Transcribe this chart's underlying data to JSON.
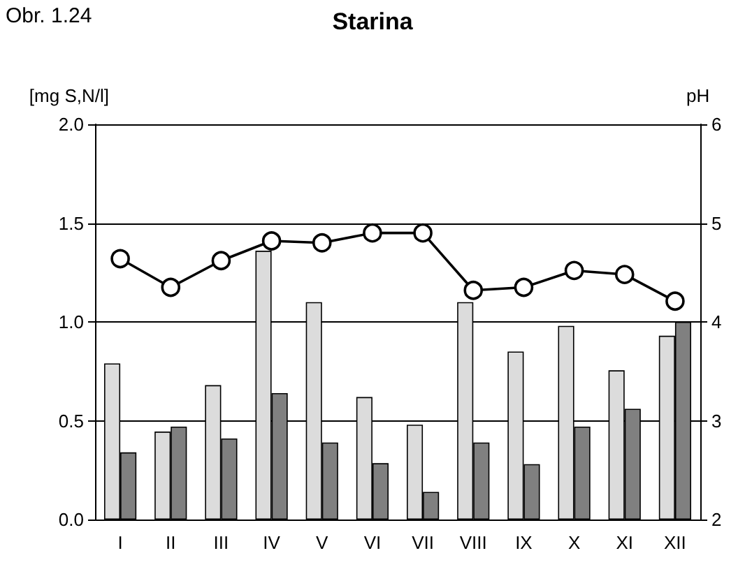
{
  "chart_data": {
    "type": "bar",
    "title": "Starina",
    "annotations": [
      "Obr. 1.24"
    ],
    "ylabel": "[mg S,N/l]",
    "y2label": "pH",
    "categories": [
      "I",
      "II",
      "III",
      "IV",
      "V",
      "VI",
      "VII",
      "VIII",
      "IX",
      "X",
      "XI",
      "XII"
    ],
    "series": [
      {
        "color": "#dcdcdc",
        "values": [
          0.79,
          0.445,
          0.68,
          1.36,
          1.1,
          0.62,
          0.48,
          1.1,
          0.85,
          0.98,
          0.755,
          0.93
        ]
      },
      {
        "color": "#808080",
        "values": [
          0.34,
          0.47,
          0.41,
          0.64,
          0.39,
          0.285,
          0.14,
          0.39,
          0.28,
          0.47,
          0.56,
          1.0
        ]
      },
      {
        "type": "line",
        "axis": "y2",
        "color": "#000000",
        "marker": "circle",
        "values": [
          4.64,
          4.35,
          4.62,
          4.82,
          4.8,
          4.9,
          4.9,
          4.32,
          4.35,
          4.52,
          4.48,
          4.21
        ]
      }
    ],
    "ylim": [
      0,
      2
    ],
    "yticks": [
      {
        "value": 0,
        "label": "0.0"
      },
      {
        "value": 0.5,
        "label": "0.5"
      },
      {
        "value": 1,
        "label": "1.0"
      },
      {
        "value": 1.5,
        "label": "1.5"
      },
      {
        "value": 2,
        "label": "2.0"
      }
    ],
    "y2lim": [
      2,
      6
    ],
    "y2ticks": [
      2,
      3,
      4,
      5,
      6
    ],
    "grid": "y"
  }
}
